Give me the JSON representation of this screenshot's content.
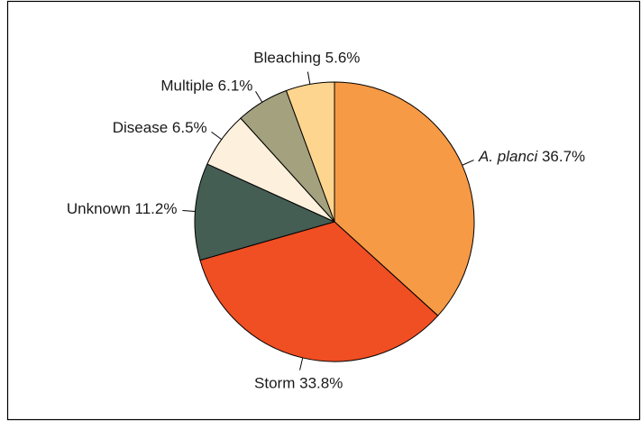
{
  "chart_data": {
    "type": "pie",
    "categories": [
      "A. planci",
      "Storm",
      "Unknown",
      "Disease",
      "Multiple",
      "Bleaching"
    ],
    "values": [
      36.7,
      33.8,
      11.2,
      6.5,
      6.1,
      5.6
    ],
    "value_labels": [
      "36.7%",
      "33.8%",
      "11.2%",
      "6.5%",
      "6.1%",
      "5.6%"
    ],
    "colors": [
      "#f79a45",
      "#f04e23",
      "#455e54",
      "#fdf0dc",
      "#a3a17e",
      "#fed58f"
    ]
  }
}
